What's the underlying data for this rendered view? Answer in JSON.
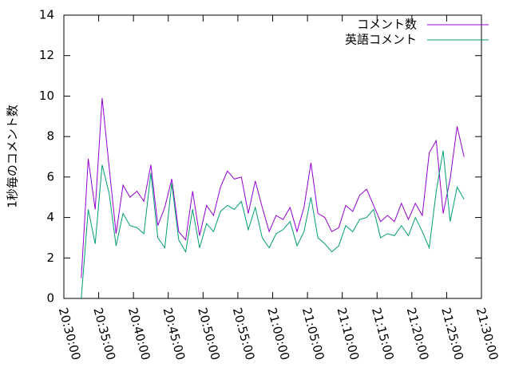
{
  "chart_data": {
    "type": "line",
    "ylabel": "1秒毎のコメント数",
    "x": [
      "20:32:30",
      "20:33:30",
      "20:34:30",
      "20:35:30",
      "20:36:30",
      "20:37:30",
      "20:38:30",
      "20:39:30",
      "20:40:30",
      "20:41:30",
      "20:42:30",
      "20:43:30",
      "20:44:30",
      "20:45:30",
      "20:46:30",
      "20:47:30",
      "20:48:30",
      "20:49:30",
      "20:50:30",
      "20:51:30",
      "20:52:30",
      "20:53:30",
      "20:54:30",
      "20:55:30",
      "20:56:30",
      "20:57:30",
      "20:58:30",
      "20:59:30",
      "21:00:30",
      "21:01:30",
      "21:02:30",
      "21:03:30",
      "21:04:30",
      "21:05:30",
      "21:06:30",
      "21:07:30",
      "21:08:30",
      "21:09:30",
      "21:10:30",
      "21:11:30",
      "21:12:30",
      "21:13:30",
      "21:14:30",
      "21:15:30",
      "21:16:30",
      "21:17:30",
      "21:18:30",
      "21:19:30",
      "21:20:30",
      "21:21:30",
      "21:22:30",
      "21:23:30",
      "21:24:30",
      "21:25:30",
      "21:26:30",
      "21:27:30"
    ],
    "series": [
      {
        "name": "コメント数",
        "color": "#9400d3",
        "values": [
          1.0,
          6.9,
          4.4,
          9.9,
          6.5,
          3.2,
          5.6,
          5.0,
          5.3,
          4.8,
          6.6,
          3.6,
          4.5,
          5.9,
          3.3,
          2.9,
          5.3,
          3.1,
          4.6,
          4.1,
          5.5,
          6.3,
          5.9,
          6.0,
          4.2,
          5.8,
          4.5,
          3.3,
          4.1,
          3.9,
          4.5,
          3.3,
          4.5,
          6.7,
          4.2,
          4.0,
          3.3,
          3.5,
          4.6,
          4.3,
          5.1,
          5.4,
          4.6,
          3.8,
          4.1,
          3.8,
          4.7,
          3.9,
          4.7,
          4.1,
          7.2,
          7.8,
          4.2,
          5.9,
          8.5,
          7.0
        ]
      },
      {
        "name": "英語コメント",
        "color": "#009e73",
        "values": [
          0.0,
          4.4,
          2.7,
          6.6,
          5.2,
          2.6,
          4.2,
          3.6,
          3.5,
          3.2,
          6.2,
          3.0,
          2.5,
          5.7,
          2.9,
          2.3,
          4.4,
          2.5,
          3.7,
          3.3,
          4.3,
          4.6,
          4.4,
          4.8,
          3.4,
          4.5,
          3.0,
          2.5,
          3.2,
          3.4,
          3.8,
          2.6,
          3.3,
          5.0,
          3.0,
          2.7,
          2.3,
          2.6,
          3.6,
          3.3,
          3.9,
          4.0,
          4.4,
          3.0,
          3.2,
          3.1,
          3.6,
          3.1,
          4.0,
          3.3,
          2.5,
          5.3,
          7.3,
          3.8,
          5.5,
          4.9
        ]
      }
    ],
    "xlim": [
      "20:30:00",
      "21:30:00"
    ],
    "xticks": [
      "20:30:00",
      "20:35:00",
      "20:40:00",
      "20:45:00",
      "20:50:00",
      "20:55:00",
      "21:00:00",
      "21:05:00",
      "21:10:00",
      "21:15:00",
      "21:20:00",
      "21:25:00",
      "21:30:00"
    ],
    "ylim": [
      0,
      14
    ],
    "yticks": [
      0,
      2,
      4,
      6,
      8,
      10,
      12,
      14
    ],
    "legend": "top-right",
    "grid": false
  }
}
